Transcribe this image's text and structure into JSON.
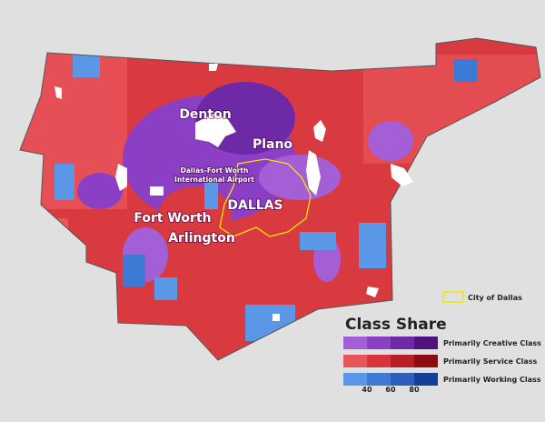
{
  "map": {
    "places": [
      {
        "lines": [
          "Denton"
        ],
        "size": "large"
      },
      {
        "lines": [
          "Plano"
        ],
        "size": "large"
      },
      {
        "lines": [
          "Dallas-Fort Worth",
          "International Airport"
        ],
        "size": "small"
      },
      {
        "lines": [
          "Fort Worth"
        ],
        "size": "large"
      },
      {
        "lines": [
          "DALLAS"
        ],
        "size": "large"
      },
      {
        "lines": [
          "Arlington"
        ],
        "size": "large"
      }
    ],
    "boundary_legend": {
      "label": "City of Dallas",
      "color": "#f2e600"
    },
    "legend": {
      "title": "Class Share",
      "classes": [
        {
          "name": "Primarily Creative Class",
          "colors": [
            "#a45fd6",
            "#8a3fc4",
            "#6e2aa6",
            "#4f137e"
          ]
        },
        {
          "name": "Primarily Service Class",
          "colors": [
            "#e8555a",
            "#d8343c",
            "#b81e26",
            "#8c0c12"
          ]
        },
        {
          "name": "Primarily Working Class",
          "colors": [
            "#5a97e6",
            "#3d7ad6",
            "#2a5fbd",
            "#133f99"
          ]
        }
      ],
      "ticks": [
        40,
        60,
        80
      ]
    }
  }
}
